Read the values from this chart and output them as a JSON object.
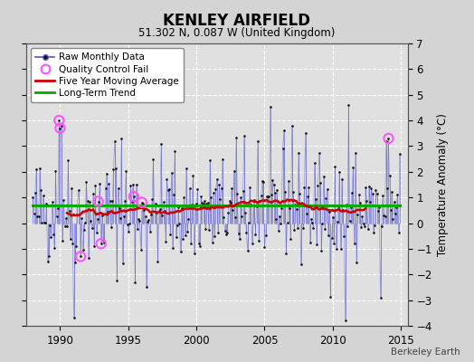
{
  "title": "KENLEY AIRFIELD",
  "subtitle": "51.302 N, 0.087 W (United Kingdom)",
  "ylabel": "Temperature Anomaly (°C)",
  "attribution": "Berkeley Earth",
  "ylim": [
    -4,
    7
  ],
  "xlim": [
    1987.5,
    2015.5
  ],
  "yticks": [
    -4,
    -3,
    -2,
    -1,
    0,
    1,
    2,
    3,
    4,
    5,
    6,
    7
  ],
  "xticks": [
    1990,
    1995,
    2000,
    2005,
    2010,
    2015
  ],
  "long_term_trend_value": 0.68,
  "background_color": "#d4d4d4",
  "plot_bg_color": "#e0e0e0",
  "grid_color": "#ffffff",
  "line_color": "#5555cc",
  "dot_color": "#111111",
  "ma_color": "#cc0000",
  "trend_color": "#00aa00",
  "qc_color": "#ff55ff",
  "legend_entries": [
    "Raw Monthly Data",
    "Quality Control Fail",
    "Five Year Moving Average",
    "Long-Term Trend"
  ]
}
